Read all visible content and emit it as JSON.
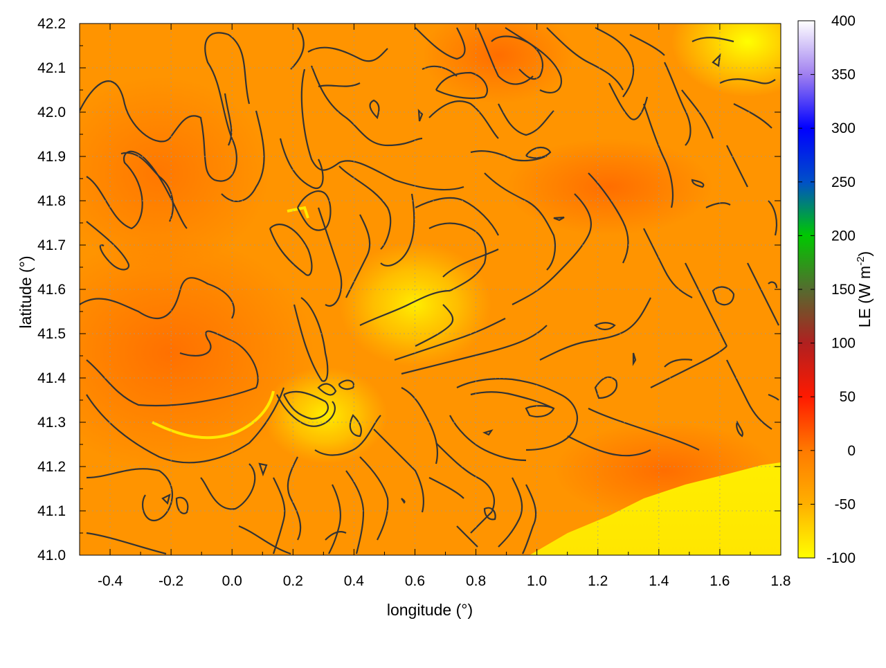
{
  "chart_data": {
    "type": "heatmap",
    "title": "",
    "xlabel": "longitude (°)",
    "ylabel": "latitude (°)",
    "xlim": [
      -0.5,
      1.8
    ],
    "ylim": [
      41.0,
      42.2
    ],
    "x_ticks": [
      "-0.4",
      "-0.2",
      "0.0",
      "0.2",
      "0.4",
      "0.6",
      "0.8",
      "1.0",
      "1.2",
      "1.4",
      "1.6",
      "1.8"
    ],
    "y_ticks": [
      "41.0",
      "41.1",
      "41.2",
      "41.3",
      "41.4",
      "41.5",
      "41.6",
      "41.7",
      "41.8",
      "41.9",
      "42.0",
      "42.1",
      "42.2"
    ],
    "grid": true,
    "colorbar": {
      "label": "LE (W m⁻²)",
      "label_main": "LE (W m",
      "label_sup": "-2",
      "label_end": ")",
      "range": [
        -100,
        400
      ],
      "ticks": [
        "-100",
        "-50",
        "0",
        "50",
        "100",
        "150",
        "200",
        "250",
        "300",
        "350",
        "400"
      ],
      "stops": [
        {
          "value": -100,
          "color": "#ffff00"
        },
        {
          "value": -50,
          "color": "#ffb000"
        },
        {
          "value": 0,
          "color": "#ff7a00"
        },
        {
          "value": 50,
          "color": "#ff1a00"
        },
        {
          "value": 100,
          "color": "#b02020"
        },
        {
          "value": 150,
          "color": "#556b2f"
        },
        {
          "value": 200,
          "color": "#00c800"
        },
        {
          "value": 250,
          "color": "#0050c8"
        },
        {
          "value": 300,
          "color": "#0000ff"
        },
        {
          "value": 350,
          "color": "#a080f0"
        },
        {
          "value": 400,
          "color": "#ffffff"
        }
      ]
    },
    "field_note": "LE field mostly between -100 and -10 W m-2; yellow (about -100) along the coast in the southeast and near 0.3-0.7 E, 41.3-41.6 N; darker orange (about -10) in the west",
    "contour_color": "#333333"
  }
}
